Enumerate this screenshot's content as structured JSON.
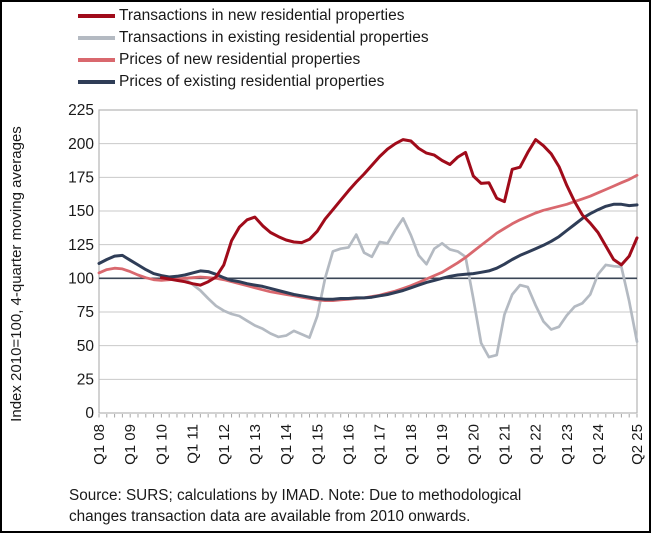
{
  "legend": {
    "items": [
      {
        "id": "transactions-new",
        "label": "Transactions in new residential properties",
        "color": "#A00B1A"
      },
      {
        "id": "transactions-existing",
        "label": "Transactions in existing residential properties",
        "color": "#B4BAC2"
      },
      {
        "id": "prices-new",
        "label": "Prices of new residential properties",
        "color": "#D9686E"
      },
      {
        "id": "prices-existing",
        "label": "Prices of existing residential properties",
        "color": "#2F3D57"
      }
    ]
  },
  "axes": {
    "y_title": "Index 2010=100, 4-quarter moving averages"
  },
  "footer": {
    "lines": [
      "Source: SURS; calculations by IMAD. Note: Due to methodological",
      "changes transaction data are available from 2010 onwards."
    ]
  },
  "colors": {
    "gridline": "#C9C9C9",
    "plot_border": "#B5B5B5",
    "baseline_100": "#3A4556",
    "tick": "#A6A6A6",
    "text": "#191919",
    "background": "#FFFFFF",
    "frame_border": "#000000"
  },
  "chart_data": {
    "type": "line",
    "title": "",
    "x_unit": "quarter",
    "x_start": "Q1 2008",
    "x_end": "Q2 2025",
    "quarters_total": 70,
    "ylim": [
      0,
      225
    ],
    "y_ticks": [
      0,
      25,
      50,
      75,
      100,
      125,
      150,
      175,
      200,
      225
    ],
    "baseline": 100,
    "grid": "horizontal",
    "legend_position": "top-left",
    "x_tick_labels": [
      {
        "label": "Q1 08",
        "index": 0
      },
      {
        "label": "Q1 09",
        "index": 4
      },
      {
        "label": "Q1 10",
        "index": 8
      },
      {
        "label": "Q1 11",
        "index": 12
      },
      {
        "label": "Q1 12",
        "index": 16
      },
      {
        "label": "Q1 13",
        "index": 20
      },
      {
        "label": "Q1 14",
        "index": 24
      },
      {
        "label": "Q1 15",
        "index": 28
      },
      {
        "label": "Q1 16",
        "index": 32
      },
      {
        "label": "Q1 17",
        "index": 36
      },
      {
        "label": "Q1 18",
        "index": 40
      },
      {
        "label": "Q1 19",
        "index": 44
      },
      {
        "label": "Q1 20",
        "index": 48
      },
      {
        "label": "Q1 21",
        "index": 52
      },
      {
        "label": "Q1 22",
        "index": 56
      },
      {
        "label": "Q1 23",
        "index": 60
      },
      {
        "label": "Q1 24",
        "index": 64
      },
      {
        "label": "Q2 25",
        "index": 69
      }
    ],
    "series": [
      {
        "id": "transactions-new",
        "name": "Transactions in new residential properties",
        "color": "#A00B1A",
        "start_index": 8,
        "start_quarter": "Q1 2010",
        "values": [
          100.5,
          99.5,
          98.5,
          97.5,
          96,
          95,
          97.5,
          101,
          110,
          128,
          138,
          143.5,
          145.5,
          139,
          134,
          131,
          128.5,
          127,
          126.5,
          129,
          135,
          144,
          151,
          158,
          165,
          171.5,
          177.5,
          184,
          190.5,
          196,
          200,
          203,
          202,
          196.5,
          193,
          191.5,
          187.5,
          184.5,
          190,
          193.5,
          176,
          170.5,
          171,
          159.5,
          157,
          181,
          182.5,
          193.5,
          203,
          198.5,
          192.5,
          183,
          169,
          157,
          147,
          141,
          134,
          124,
          114,
          110,
          116.5,
          130
        ]
      },
      {
        "id": "transactions-existing",
        "name": "Transactions in existing residential properties",
        "color": "#B4BAC2",
        "start_index": 8,
        "start_quarter": "Q1 2010",
        "values": [
          101,
          100.5,
          100,
          99.5,
          95.5,
          91,
          85,
          79.5,
          76,
          73.5,
          72,
          68.5,
          65,
          62.5,
          59,
          56.5,
          57.5,
          61,
          58.5,
          56,
          72,
          100,
          120,
          122,
          123,
          132.5,
          119,
          116,
          127,
          126,
          136,
          144.5,
          132,
          117,
          110.5,
          122,
          126,
          121.5,
          120,
          116,
          85,
          52,
          41.5,
          43,
          73,
          88,
          95,
          93.5,
          80,
          68,
          62,
          64,
          72.5,
          79,
          81.5,
          88,
          103,
          110,
          109,
          108.5,
          83,
          53
        ]
      },
      {
        "id": "prices-new",
        "name": "Prices of new residential properties",
        "color": "#D9686E",
        "start_index": 0,
        "start_quarter": "Q1 2008",
        "values": [
          104,
          106.5,
          107.5,
          107,
          105,
          102.5,
          100.5,
          99,
          98.5,
          99,
          99.5,
          100,
          100.5,
          101,
          100.5,
          100,
          99,
          97.5,
          96,
          94.5,
          93,
          91.5,
          90,
          89,
          88,
          87,
          86,
          85,
          84,
          83.5,
          83.5,
          84,
          84.5,
          85,
          85.5,
          86.5,
          87.5,
          89,
          90.5,
          92.5,
          94.5,
          97,
          99.5,
          102,
          104.5,
          108,
          111.5,
          115.5,
          120,
          124.5,
          129,
          133.5,
          137,
          140.5,
          143.5,
          146,
          148.5,
          150.5,
          152,
          153.5,
          155,
          157,
          159,
          161,
          163.5,
          166,
          168.5,
          171,
          173.5,
          176.5
        ]
      },
      {
        "id": "prices-existing",
        "name": "Prices of existing residential properties",
        "color": "#2F3D57",
        "start_index": 0,
        "start_quarter": "Q1 2008",
        "values": [
          111,
          114,
          116.5,
          117,
          113.5,
          110,
          106.5,
          103.5,
          102,
          101,
          101.5,
          102.5,
          104,
          105.5,
          105,
          103,
          100.5,
          98.5,
          97.5,
          96,
          95,
          94,
          92.5,
          91,
          89.5,
          88,
          87,
          86,
          85,
          84.5,
          84.5,
          85,
          85,
          85.5,
          85.5,
          86,
          87,
          88,
          89.5,
          91,
          93,
          95,
          97,
          98.5,
          100,
          101.5,
          102.5,
          103,
          103.5,
          104.5,
          105.5,
          107.5,
          110.5,
          114,
          117,
          119.5,
          122,
          124.5,
          127.5,
          131,
          135.5,
          140,
          144.5,
          148,
          151,
          153.5,
          155,
          155,
          154,
          154.5
        ]
      }
    ]
  }
}
